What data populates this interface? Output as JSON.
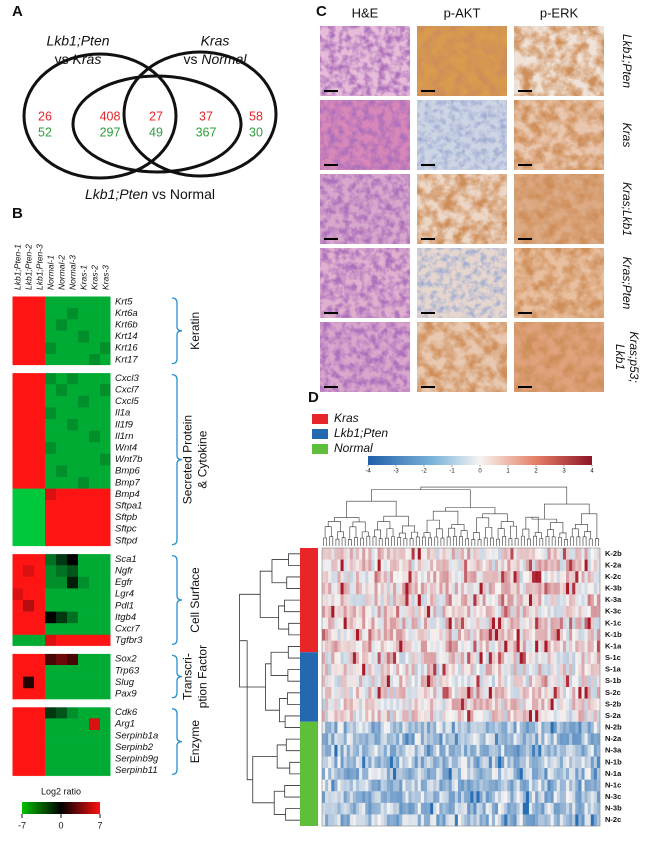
{
  "panel_a": {
    "label": "A",
    "left_set": {
      "gene1": "Lkb1;Pten",
      "vs": "vs",
      "gene2": "Kras"
    },
    "right_set": {
      "gene1": "Kras",
      "vs": "vs",
      "gene2": "Normal"
    },
    "bottom_set": {
      "gene1": "Lkb1;Pten",
      "vs": "vs",
      "gene2": "Normal"
    },
    "regions": [
      {
        "up": 26,
        "down": 52
      },
      {
        "up": 408,
        "down": 297
      },
      {
        "up": 27,
        "down": 49
      },
      {
        "up": 37,
        "down": 367
      },
      {
        "up": 58,
        "down": 30
      }
    ]
  },
  "panel_b": {
    "label": "B",
    "columns": [
      "Lkb1;Pten-1",
      "Lkb1;Pten-2",
      "Lkb1;Pten-3",
      "Normal-1",
      "Normal-2",
      "Normal-3",
      "Kras-1",
      "Kras-2",
      "Kras-3"
    ],
    "groups": [
      {
        "label": [
          "Keratin"
        ],
        "rows": [
          {
            "gene": "Krt5",
            "values": [
              7,
              7,
              7,
              -6,
              -6,
              -6,
              -6,
              -6,
              -6
            ]
          },
          {
            "gene": "Krt6a",
            "values": [
              7,
              7,
              7,
              -6,
              -6,
              -5,
              -6,
              -6,
              -6
            ]
          },
          {
            "gene": "Krt6b",
            "values": [
              7,
              7,
              7,
              -6,
              -5,
              -6,
              -6,
              -6,
              -6
            ]
          },
          {
            "gene": "Krt14",
            "values": [
              7,
              7,
              7,
              -6,
              -6,
              -6,
              -5,
              -6,
              -6
            ]
          },
          {
            "gene": "Krt16",
            "values": [
              7,
              7,
              7,
              -5,
              -6,
              -6,
              -6,
              -6,
              -5
            ]
          },
          {
            "gene": "Krt17",
            "values": [
              7,
              7,
              7,
              -6,
              -6,
              -6,
              -6,
              -5,
              -6
            ]
          }
        ]
      },
      {
        "label": [
          "Secreted Protein",
          "& Cytokine"
        ],
        "rows": [
          {
            "gene": "Cxcl3",
            "values": [
              7,
              7,
              7,
              -5,
              -6,
              -5,
              -6,
              -6,
              -6
            ]
          },
          {
            "gene": "Cxcl7",
            "values": [
              7,
              7,
              7,
              -6,
              -5,
              -6,
              -6,
              -6,
              -5
            ]
          },
          {
            "gene": "Cxcl5",
            "values": [
              7,
              7,
              7,
              -6,
              -6,
              -6,
              -5,
              -6,
              -6
            ]
          },
          {
            "gene": "Il1a",
            "values": [
              7,
              7,
              7,
              -5,
              -6,
              -6,
              -6,
              -6,
              -6
            ]
          },
          {
            "gene": "Il1f9",
            "values": [
              7,
              7,
              7,
              -6,
              -6,
              -5,
              -6,
              -6,
              -6
            ]
          },
          {
            "gene": "Il1rn",
            "values": [
              7,
              7,
              7,
              -6,
              -6,
              -6,
              -6,
              -5,
              -6
            ]
          },
          {
            "gene": "Wnt4",
            "values": [
              7,
              7,
              7,
              -5,
              -6,
              -6,
              -6,
              -6,
              -6
            ]
          },
          {
            "gene": "Wnt7b",
            "values": [
              7,
              7,
              7,
              -6,
              -6,
              -6,
              -6,
              -6,
              -5
            ]
          },
          {
            "gene": "Bmp6",
            "values": [
              7,
              7,
              7,
              -6,
              -5,
              -6,
              -6,
              -6,
              -6
            ]
          },
          {
            "gene": "Bmp7",
            "values": [
              7,
              7,
              7,
              -6,
              -6,
              -6,
              -5,
              -6,
              -6
            ]
          },
          {
            "gene": "Bmp4",
            "values": [
              -7,
              -7,
              -7,
              6,
              7,
              7,
              7,
              7,
              7
            ]
          },
          {
            "gene": "Sftpa1",
            "values": [
              -7,
              -7,
              -7,
              7,
              7,
              7,
              7,
              7,
              7
            ]
          },
          {
            "gene": "Sftpb",
            "values": [
              -7,
              -7,
              -7,
              7,
              7,
              7,
              7,
              7,
              7
            ]
          },
          {
            "gene": "Sftpc",
            "values": [
              -7,
              -7,
              -7,
              7,
              7,
              7,
              7,
              7,
              7
            ]
          },
          {
            "gene": "Sftpd",
            "values": [
              -7,
              -7,
              -7,
              7,
              7,
              7,
              7,
              7,
              7
            ]
          }
        ]
      },
      {
        "label": [
          "Cell Surface"
        ],
        "rows": [
          {
            "gene": "Sca1",
            "values": [
              7,
              7,
              7,
              -4,
              -2,
              0,
              -6,
              -6,
              -6
            ]
          },
          {
            "gene": "Ngfr",
            "values": [
              7,
              6,
              7,
              -5,
              -4,
              -3,
              -6,
              -6,
              -6
            ]
          },
          {
            "gene": "Egfr",
            "values": [
              7,
              7,
              7,
              -5,
              -5,
              -1,
              -5,
              -6,
              -6
            ]
          },
          {
            "gene": "Lgr4",
            "values": [
              6,
              7,
              7,
              -6,
              -6,
              -6,
              -6,
              -6,
              -6
            ]
          },
          {
            "gene": "Pdl1",
            "values": [
              7,
              5,
              7,
              -6,
              -6,
              -6,
              -6,
              -6,
              -6
            ]
          },
          {
            "gene": "Itgb4",
            "values": [
              7,
              7,
              7,
              0,
              -2,
              -4,
              -6,
              -6,
              -6
            ]
          },
          {
            "gene": "Cxcr7",
            "values": [
              7,
              7,
              7,
              -6,
              -6,
              -6,
              -6,
              -6,
              -6
            ]
          },
          {
            "gene": "Tgfbr3",
            "values": [
              -6,
              -6,
              -6,
              6,
              7,
              7,
              7,
              7,
              7
            ]
          }
        ]
      },
      {
        "label": [
          "Transcri-",
          "ption Factor"
        ],
        "rows": [
          {
            "gene": "Sox2",
            "values": [
              7,
              7,
              7,
              2,
              3,
              2,
              -6,
              -6,
              -6
            ]
          },
          {
            "gene": "Trp63",
            "values": [
              7,
              7,
              7,
              -6,
              -6,
              -6,
              -6,
              -6,
              -6
            ]
          },
          {
            "gene": "Slug",
            "values": [
              7,
              1,
              7,
              -6,
              -6,
              -6,
              -6,
              -6,
              -6
            ]
          },
          {
            "gene": "Pax9",
            "values": [
              7,
              7,
              7,
              -6,
              -6,
              -6,
              -6,
              -6,
              -6
            ]
          }
        ]
      },
      {
        "label": [
          "Enzyme"
        ],
        "rows": [
          {
            "gene": "Cdk6",
            "values": [
              7,
              7,
              7,
              -2,
              -3,
              -5,
              -6,
              -6,
              -6
            ]
          },
          {
            "gene": "Arg1",
            "values": [
              7,
              7,
              7,
              -6,
              -6,
              -6,
              -6,
              6,
              -6
            ]
          },
          {
            "gene": "Serpinb1a",
            "values": [
              7,
              7,
              7,
              -6,
              -6,
              -6,
              -6,
              -6,
              -6
            ]
          },
          {
            "gene": "Serpinb2",
            "values": [
              7,
              7,
              7,
              -6,
              -6,
              -6,
              -6,
              -6,
              -6
            ]
          },
          {
            "gene": "Serpinb9g",
            "values": [
              7,
              7,
              7,
              -6,
              -6,
              -6,
              -6,
              -6,
              -6
            ]
          },
          {
            "gene": "Serpinb11",
            "values": [
              7,
              7,
              7,
              -6,
              -6,
              -6,
              -6,
              -6,
              -6
            ]
          }
        ]
      }
    ],
    "legend_title": "Log2 ratio",
    "legend_ticks": [
      -7,
      0,
      7
    ]
  },
  "panel_c": {
    "label": "C",
    "columns": [
      "H&E",
      "p-AKT",
      "p-ERK"
    ],
    "rows": [
      [
        "Lkb1;Pten"
      ],
      [
        "Kras"
      ],
      [
        "Kras;Lkb1"
      ],
      [
        "Kras;Pten"
      ],
      [
        "Kras;p53;",
        "Lkb1"
      ]
    ]
  },
  "panel_d": {
    "label": "D",
    "groups": [
      {
        "name": "Kras",
        "color": "#e8262a",
        "rows": [
          "K-2b",
          "K-2a",
          "K-2c",
          "K-3b",
          "K-3a",
          "K-3c",
          "K-1c",
          "K-1b",
          "K-1a"
        ]
      },
      {
        "name": "Lkb1;Pten",
        "color": "#2468b0",
        "rows": [
          "S-1c",
          "S-1a",
          "S-1b",
          "S-2c",
          "S-2b",
          "S-2a"
        ]
      },
      {
        "name": "Normal",
        "color": "#5fbf3a",
        "rows": [
          "N-2b",
          "N-2a",
          "N-3a",
          "N-1b",
          "N-1a",
          "N-1c",
          "N-3c",
          "N-3b",
          "N-2c"
        ]
      }
    ],
    "colorbar_ticks": [
      -4,
      -3,
      -2,
      -1,
      0,
      1,
      2,
      3,
      4
    ]
  }
}
